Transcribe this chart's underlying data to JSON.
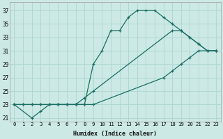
{
  "xlabel": "Humidex (Indice chaleur)",
  "background_color": "#cce9e5",
  "grid_color": "#b0d8d2",
  "line_color": "#1a6e64",
  "xlim": [
    -0.5,
    23.5
  ],
  "ylim": [
    20.5,
    38.2
  ],
  "xticks": [
    0,
    1,
    2,
    3,
    4,
    5,
    6,
    7,
    8,
    9,
    10,
    11,
    12,
    13,
    14,
    15,
    16,
    17,
    18,
    19,
    20,
    21,
    22,
    23
  ],
  "yticks": [
    21,
    23,
    25,
    27,
    29,
    31,
    33,
    35,
    37
  ],
  "curve1_x": [
    0,
    2,
    3,
    4,
    5,
    6,
    7,
    8,
    9,
    10,
    11,
    12,
    13,
    14,
    15,
    16,
    17,
    18,
    19,
    20,
    21,
    22,
    23
  ],
  "curve1_y": [
    23,
    21,
    22,
    23,
    23,
    23,
    23,
    23,
    29,
    31,
    34,
    34,
    36,
    37,
    37,
    37,
    36,
    35,
    34,
    33,
    32,
    31,
    31
  ],
  "curve2_x": [
    0,
    1,
    2,
    3,
    4,
    5,
    6,
    7,
    8,
    9,
    17,
    18,
    19,
    20,
    21,
    22,
    23
  ],
  "curve2_y": [
    23,
    23,
    23,
    23,
    23,
    23,
    23,
    23,
    23,
    23,
    27,
    28,
    29,
    30,
    31,
    31,
    31
  ],
  "curve3_x": [
    0,
    1,
    2,
    3,
    4,
    5,
    6,
    7,
    8,
    9,
    18,
    19,
    20,
    21,
    22,
    23
  ],
  "curve3_y": [
    23,
    23,
    23,
    23,
    23,
    23,
    23,
    23,
    24,
    25,
    34,
    34,
    33,
    32,
    31,
    31
  ]
}
